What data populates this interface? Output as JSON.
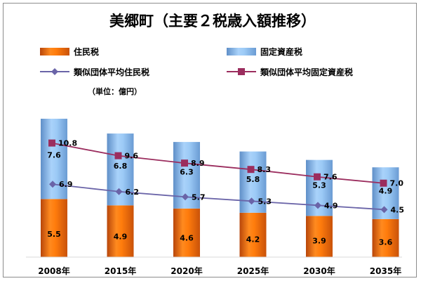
{
  "chart_data": {
    "type": "bar",
    "title": "美郷町（主要２税歳入額推移）",
    "unit_label": "（単位：億円）",
    "categories": [
      "2008年",
      "2015年",
      "2020年",
      "2025年",
      "2030年",
      "2035年"
    ],
    "stacked_bars": [
      {
        "name": "住民税",
        "values": [
          5.5,
          4.9,
          4.6,
          4.2,
          3.9,
          3.6
        ],
        "color": "#e8650b"
      },
      {
        "name": "固定資産税",
        "values": [
          7.6,
          6.8,
          6.3,
          5.8,
          5.3,
          4.9
        ],
        "color": "#8cbff0"
      }
    ],
    "lines": [
      {
        "name": "類似団体平均住民税",
        "values": [
          6.9,
          6.2,
          5.7,
          5.3,
          4.9,
          4.5
        ],
        "color": "#6a64a8",
        "marker": "diamond"
      },
      {
        "name": "類似団体平均固定資産税",
        "values": [
          10.8,
          9.6,
          8.9,
          8.3,
          7.6,
          7.0
        ],
        "color": "#9b2d5e",
        "marker": "square"
      }
    ],
    "ylim": [
      0,
      13.5
    ],
    "grid": false,
    "legend_position": "top"
  }
}
